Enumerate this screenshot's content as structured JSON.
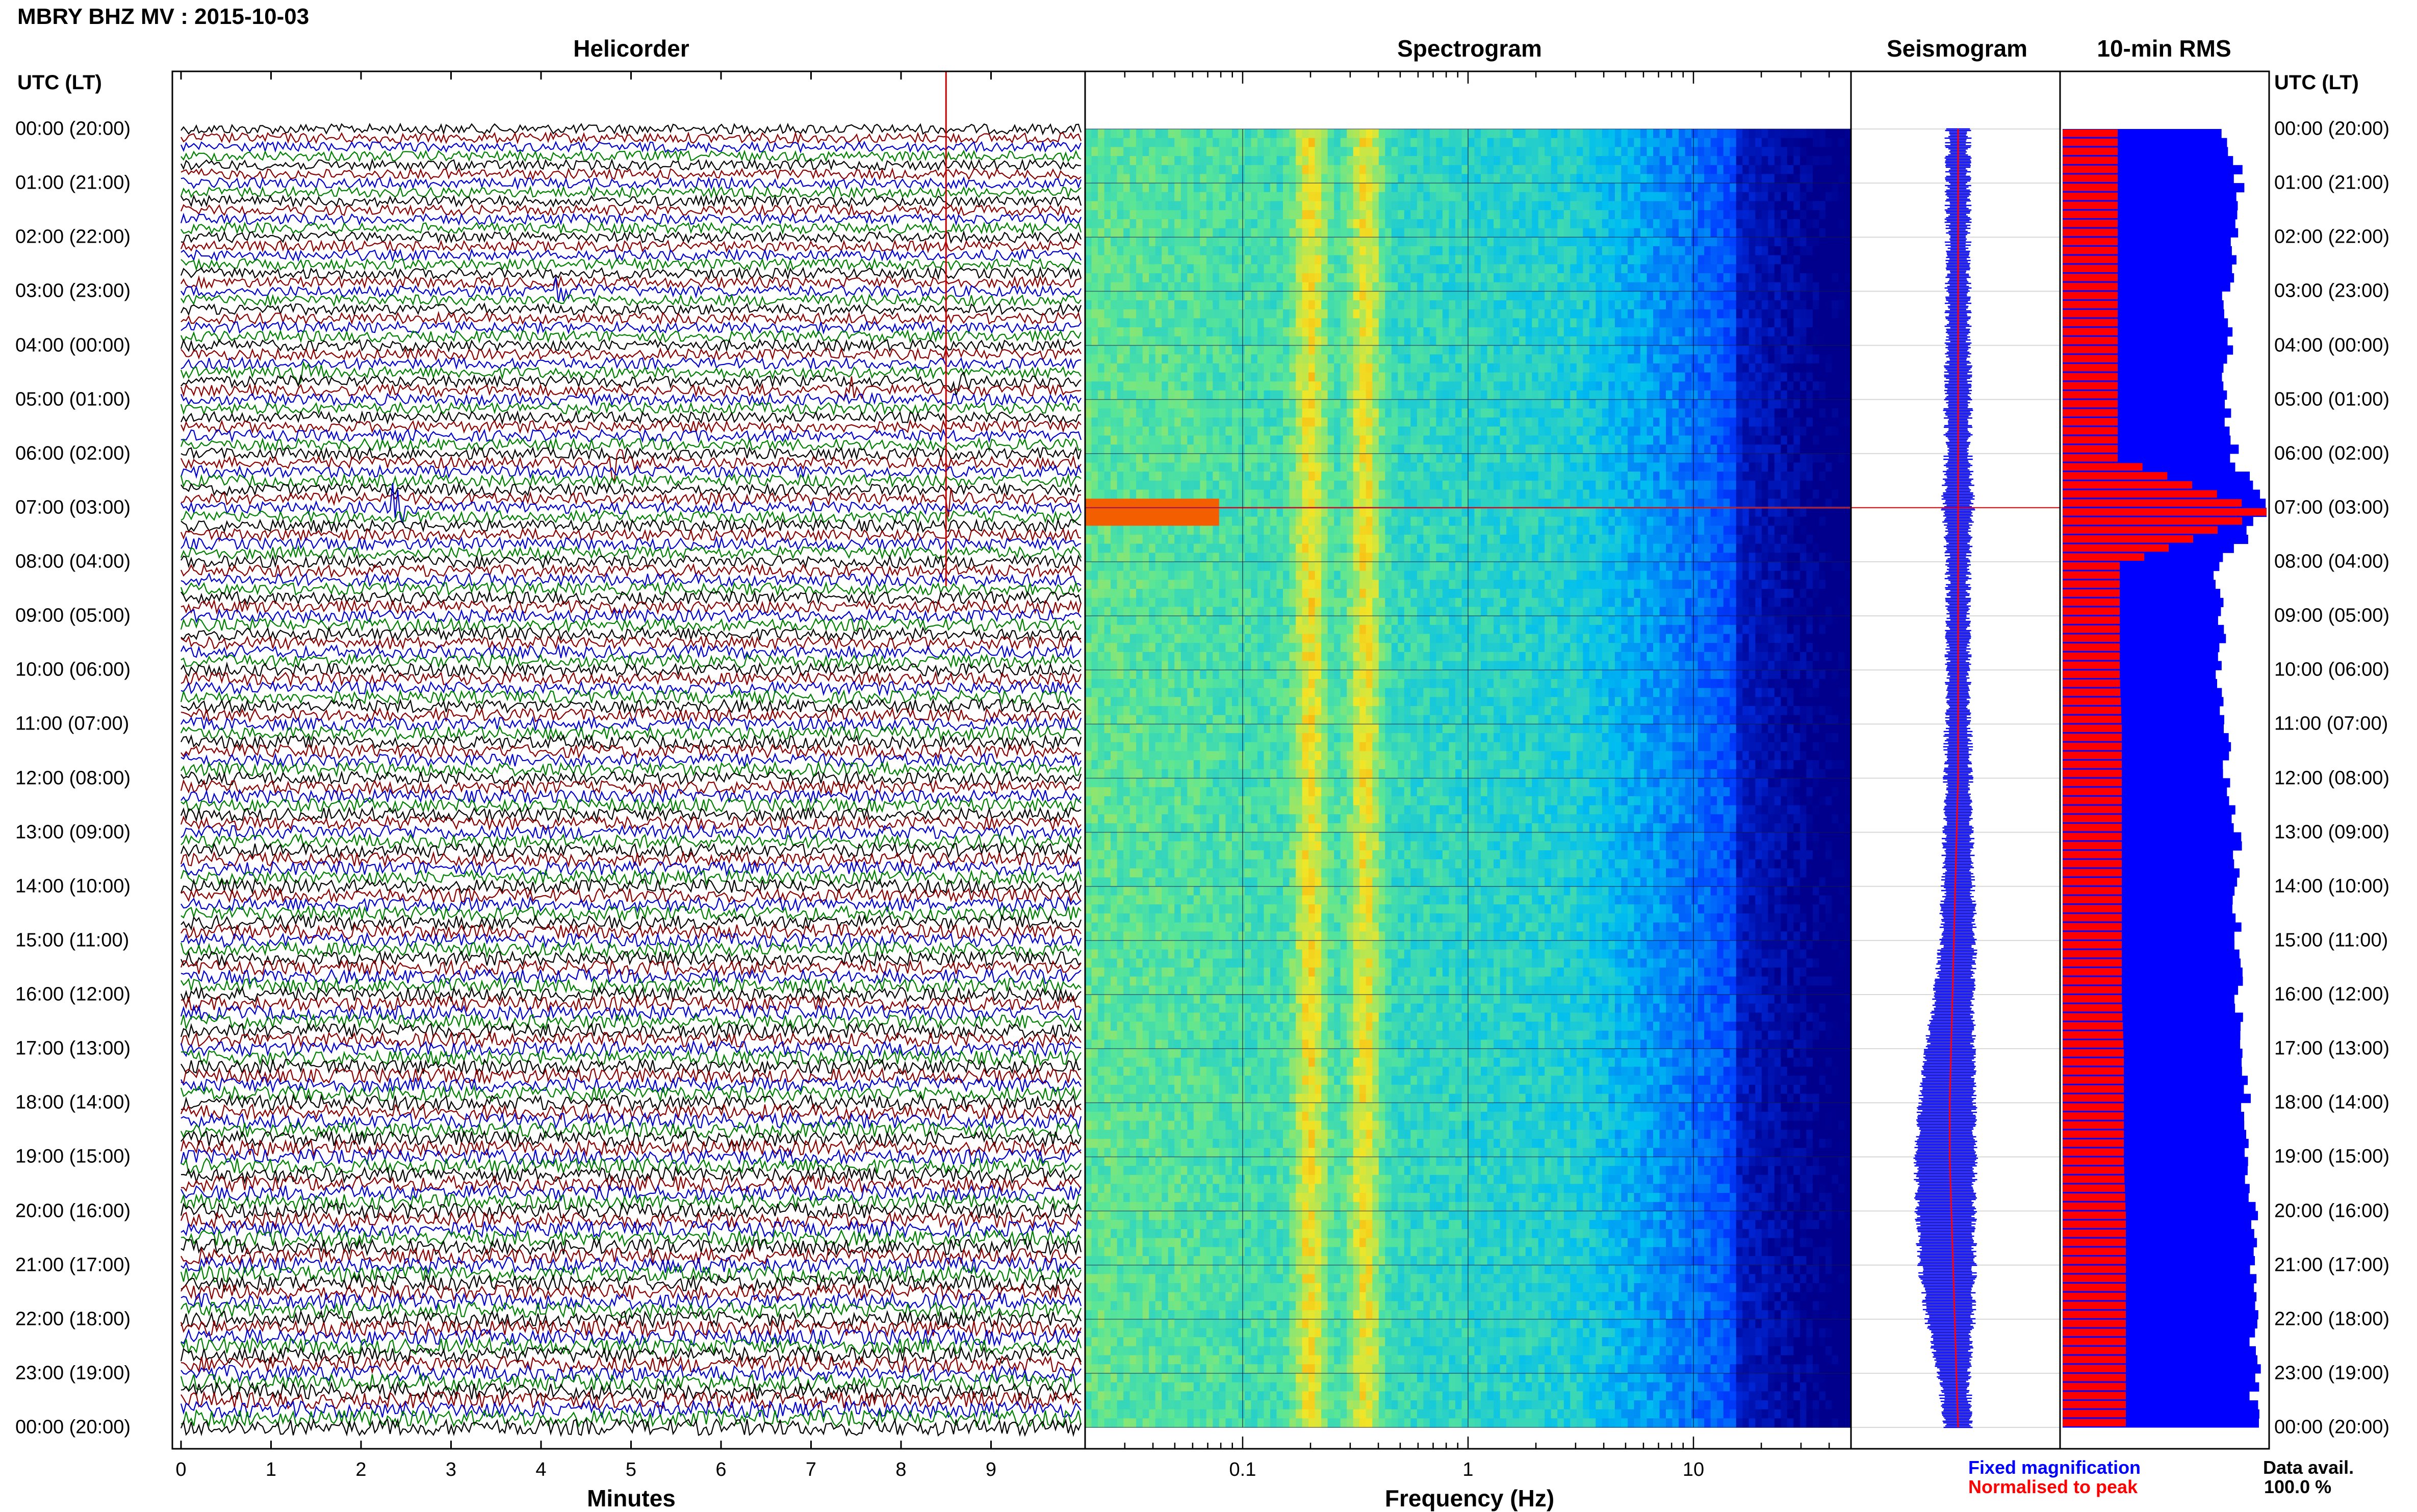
{
  "station_title": "MBRY BHZ MV : 2015-10-03",
  "panels": {
    "helicorder": "Helicorder",
    "spectrogram": "Spectrogram",
    "seismogram": "Seismogram",
    "rms": "10-min RMS"
  },
  "time_axis_header": "UTC (LT)",
  "time_labels": [
    "00:00 (20:00)",
    "01:00 (21:00)",
    "02:00 (22:00)",
    "03:00 (23:00)",
    "04:00 (00:00)",
    "05:00 (01:00)",
    "06:00 (02:00)",
    "07:00 (03:00)",
    "08:00 (04:00)",
    "09:00 (05:00)",
    "10:00 (06:00)",
    "11:00 (07:00)",
    "12:00 (08:00)",
    "13:00 (09:00)",
    "14:00 (10:00)",
    "15:00 (11:00)",
    "16:00 (12:00)",
    "17:00 (13:00)",
    "18:00 (14:00)",
    "19:00 (15:00)",
    "20:00 (16:00)",
    "21:00 (17:00)",
    "22:00 (18:00)",
    "23:00 (19:00)",
    "00:00 (20:00)"
  ],
  "legend": {
    "fixed": "Fixed magnification",
    "normalised": "Normalised to peak",
    "data_avail_label": "Data avail.",
    "data_avail_value": "100.0 %"
  },
  "colors": {
    "trace_cycle": [
      "#000000",
      "#8b0000",
      "#0000cd",
      "#008000"
    ],
    "seismogram_envelope": "#0000ff",
    "seismogram_median": "#ff0000",
    "rms_fixed": "#0000ff",
    "rms_normalised": "#ff0000",
    "event_marker": "#cc0000"
  },
  "chart_data": [
    {
      "type": "line",
      "panel": "helicorder",
      "xlabel": "Minutes",
      "x_ticks": [
        0,
        1,
        2,
        3,
        4,
        5,
        6,
        7,
        8,
        9
      ],
      "x_range": [
        0,
        10
      ],
      "y_range_hours": [
        0,
        24
      ],
      "traces_per_hour": 6,
      "trace_minutes": 10,
      "events": [
        {
          "hour": 3.0,
          "minute": 4.2,
          "color": "#8b0000"
        },
        {
          "hour": 4.5,
          "minute": 1.3,
          "color": "#008000"
        },
        {
          "hour": 4.8,
          "minute": 7.35,
          "color": "#000000"
        },
        {
          "hour": 4.6,
          "minute": 8.6,
          "color": "#008000"
        },
        {
          "hour": 6.2,
          "minute": 4.8,
          "color": "#0000cd"
        },
        {
          "hour": 6.8,
          "minute": 8.5,
          "color": "#8b0000"
        },
        {
          "hour": 7.0,
          "minute": 2.4,
          "color": "#0000cd"
        }
      ],
      "event_line_minute": 8.5
    },
    {
      "type": "heatmap",
      "panel": "spectrogram",
      "xlabel": "Frequency (Hz)",
      "x_scale": "log",
      "x_range": [
        0.02,
        50
      ],
      "x_ticks": [
        0.1,
        1,
        10
      ],
      "x_tick_labels": [
        "0.1",
        "1",
        "10"
      ],
      "peak_bands_hz": [
        0.2,
        0.35
      ],
      "event_hour": 7.0
    },
    {
      "type": "line",
      "panel": "seismogram",
      "envelope_halfwidth": [
        [
          0,
          0.1
        ],
        [
          2,
          0.1
        ],
        [
          4,
          0.1
        ],
        [
          5,
          0.12
        ],
        [
          6,
          0.11
        ],
        [
          7,
          0.14
        ],
        [
          8,
          0.1
        ],
        [
          10,
          0.1
        ],
        [
          12,
          0.12
        ],
        [
          14,
          0.14
        ],
        [
          15,
          0.16
        ],
        [
          16,
          0.18
        ],
        [
          17,
          0.22
        ],
        [
          18,
          0.26
        ],
        [
          19,
          0.28
        ],
        [
          20,
          0.27
        ],
        [
          21,
          0.26
        ],
        [
          22,
          0.22
        ],
        [
          23,
          0.14
        ],
        [
          24,
          0.12
        ]
      ],
      "median_offset": [
        [
          0,
          0.0
        ],
        [
          12,
          0.0
        ],
        [
          18,
          -0.01
        ],
        [
          19,
          -0.01
        ],
        [
          24,
          0.0
        ]
      ]
    },
    {
      "type": "bar",
      "panel": "rms",
      "series": [
        {
          "name": "Fixed magnification",
          "hourly_level": [
            0.8,
            0.88,
            0.85,
            0.8,
            0.82,
            0.8,
            0.85,
            1.0,
            0.76,
            0.77,
            0.78,
            0.8,
            0.81,
            0.86,
            0.85,
            0.86,
            0.87,
            0.89,
            0.9,
            0.91,
            0.93,
            0.93,
            0.94,
            0.95,
            0.93
          ]
        },
        {
          "name": "Normalised to peak",
          "hourly_level": [
            0.27,
            0.27,
            0.27,
            0.27,
            0.27,
            0.27,
            0.27,
            1.0,
            0.28,
            0.28,
            0.28,
            0.29,
            0.29,
            0.29,
            0.29,
            0.29,
            0.29,
            0.3,
            0.3,
            0.3,
            0.31,
            0.31,
            0.31,
            0.31,
            0.31
          ]
        }
      ]
    }
  ]
}
